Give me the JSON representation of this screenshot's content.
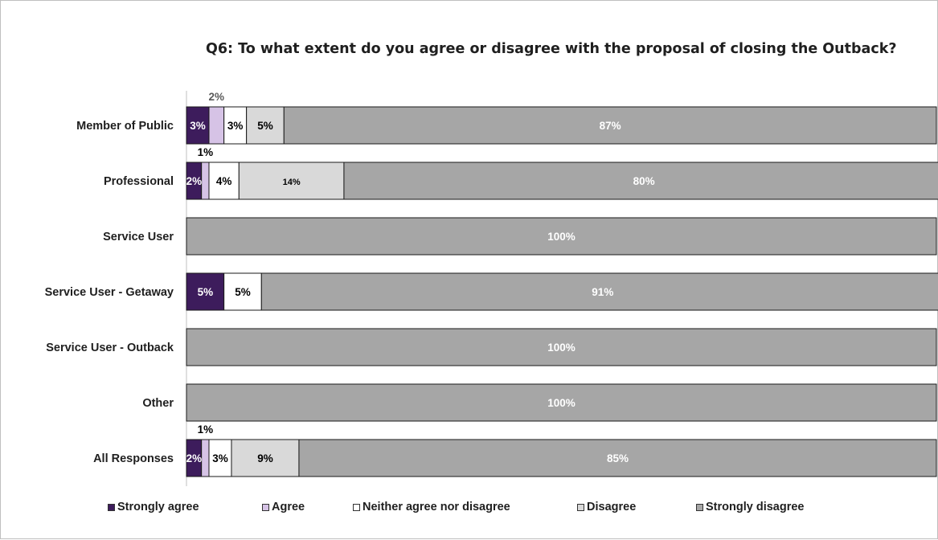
{
  "chart_data": {
    "type": "bar",
    "orientation": "horizontal",
    "stacked": true,
    "title": "Q6: To what extent do you agree or disagree with the proposal of closing the Outback?",
    "categories": [
      "Member of Public",
      "Professional",
      "Service User",
      "Service User - Getaway",
      "Service User - Outback",
      "Other",
      "All Responses"
    ],
    "series": [
      {
        "name": "Strongly agree",
        "color": "#3d1c5c",
        "label_color": "#ffffff",
        "values": [
          3,
          2,
          0,
          5,
          0,
          0,
          2
        ]
      },
      {
        "name": "Agree",
        "color": "#d6c3e6",
        "label_color": "#000000",
        "values": [
          2,
          1,
          0,
          0,
          0,
          0,
          1
        ]
      },
      {
        "name": "Neither agree nor disagree",
        "color": "#ffffff",
        "label_color": "#000000",
        "values": [
          3,
          4,
          0,
          5,
          0,
          0,
          3
        ]
      },
      {
        "name": "Disagree",
        "color": "#d9d9d9",
        "label_color": "#000000",
        "values": [
          5,
          14,
          0,
          0,
          0,
          0,
          9
        ]
      },
      {
        "name": "Strongly disagree",
        "color": "#a6a6a6",
        "label_color": "#ffffff",
        "values": [
          87,
          80,
          100,
          91,
          100,
          100,
          85
        ]
      }
    ],
    "xlim": [
      0,
      100
    ],
    "grid": false,
    "legend_position": "bottom"
  }
}
